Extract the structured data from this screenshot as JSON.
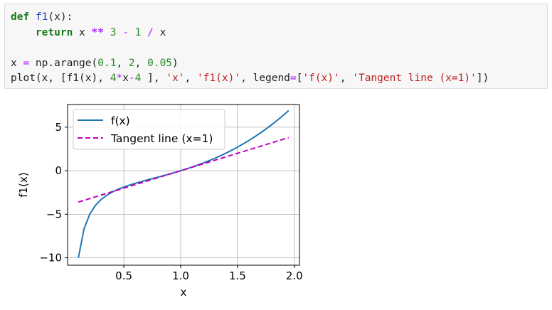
{
  "code": {
    "lines": [
      [
        {
          "t": "def",
          "c": "kw"
        },
        {
          "t": " "
        },
        {
          "t": "f1",
          "c": "fn"
        },
        {
          "t": "(x):"
        }
      ],
      [
        {
          "t": "    "
        },
        {
          "t": "return",
          "c": "kw"
        },
        {
          "t": " x "
        },
        {
          "t": "**",
          "c": "op"
        },
        {
          "t": " "
        },
        {
          "t": "3",
          "c": "num"
        },
        {
          "t": " "
        },
        {
          "t": "-",
          "c": "op2"
        },
        {
          "t": " "
        },
        {
          "t": "1",
          "c": "num"
        },
        {
          "t": " "
        },
        {
          "t": "/",
          "c": "op2"
        },
        {
          "t": " x"
        }
      ],
      [],
      [
        {
          "t": "x "
        },
        {
          "t": "=",
          "c": "op2"
        },
        {
          "t": " np.arange("
        },
        {
          "t": "0.1",
          "c": "num"
        },
        {
          "t": ", "
        },
        {
          "t": "2",
          "c": "num"
        },
        {
          "t": ", "
        },
        {
          "t": "0.05",
          "c": "num"
        },
        {
          "t": ")"
        }
      ],
      [
        {
          "t": "plot(x, [f1(x), "
        },
        {
          "t": "4",
          "c": "num"
        },
        {
          "t": "*",
          "c": "op2"
        },
        {
          "t": "x"
        },
        {
          "t": "-",
          "c": "op2"
        },
        {
          "t": "4",
          "c": "num"
        },
        {
          "t": " ], "
        },
        {
          "t": "'x'",
          "c": "str"
        },
        {
          "t": ", "
        },
        {
          "t": "'f1(x)'",
          "c": "str"
        },
        {
          "t": ", legend"
        },
        {
          "t": "=",
          "c": "op2"
        },
        {
          "t": "["
        },
        {
          "t": "'f(x)'",
          "c": "str"
        },
        {
          "t": ", "
        },
        {
          "t": "'Tangent line (x=1)'",
          "c": "str"
        },
        {
          "t": "])"
        }
      ]
    ]
  },
  "chart_data": {
    "type": "line",
    "xlabel": "x",
    "ylabel": "f1(x)",
    "xlim": [
      0.005,
      2.045
    ],
    "ylim": [
      -10.85,
      7.6
    ],
    "xticks": [
      0.5,
      1.0,
      1.5,
      2.0
    ],
    "xtick_labels": [
      "0.5",
      "1.0",
      "1.5",
      "2.0"
    ],
    "yticks": [
      5,
      0,
      -5,
      -10
    ],
    "ytick_labels": [
      "5",
      "0",
      "−5",
      "−10"
    ],
    "grid": true,
    "legend_position": "upper-left",
    "x_range": {
      "start": 0.1,
      "stop": 2,
      "step": 0.05
    },
    "series": [
      {
        "name": "f(x)",
        "expr": "x**3 - 1/x",
        "color": "#1f77b4",
        "style": "solid"
      },
      {
        "name": "Tangent line (x=1)",
        "expr": "4*x - 4",
        "color": "#bf00bf",
        "style": "dashed"
      }
    ]
  }
}
